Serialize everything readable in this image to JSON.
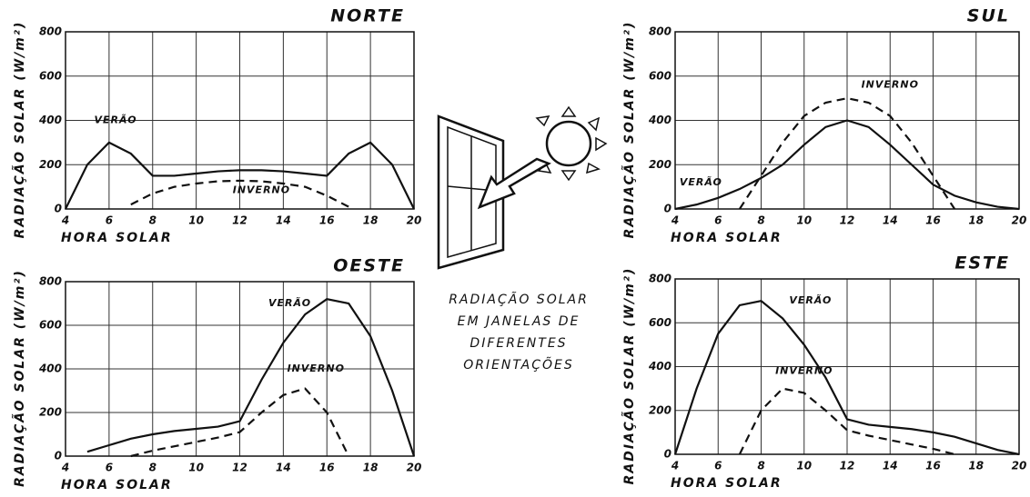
{
  "chart_data": [
    {
      "type": "line",
      "title": "NORTE",
      "xlabel": "HORA SOLAR",
      "ylabel": "RADIAÇÃO SOLAR (W/m²)",
      "x": [
        4,
        5,
        6,
        7,
        8,
        9,
        10,
        11,
        12,
        13,
        14,
        15,
        16,
        17,
        18,
        19,
        20
      ],
      "series": [
        {
          "name": "VERÃO",
          "color": "#111",
          "style": "solid",
          "values": [
            0,
            200,
            300,
            250,
            150,
            150,
            160,
            170,
            175,
            175,
            170,
            160,
            150,
            250,
            300,
            200,
            0
          ]
        },
        {
          "name": "INVERNO",
          "color": "#111",
          "style": "dashed",
          "values": [
            null,
            null,
            null,
            20,
            70,
            100,
            115,
            125,
            128,
            125,
            115,
            100,
            60,
            10,
            null,
            null,
            null
          ]
        }
      ],
      "xlim": [
        4,
        20
      ],
      "xticks": [
        4,
        6,
        8,
        10,
        12,
        14,
        16,
        18,
        20
      ],
      "ylim": [
        0,
        800
      ],
      "yticks": [
        0,
        200,
        400,
        600,
        800
      ],
      "grid": true
    },
    {
      "type": "line",
      "title": "SUL",
      "xlabel": "HORA SOLAR",
      "ylabel": "RADIAÇÃO SOLAR (W/m²)",
      "x": [
        4,
        5,
        6,
        7,
        8,
        9,
        10,
        11,
        12,
        13,
        14,
        15,
        16,
        17,
        18,
        19,
        20
      ],
      "series": [
        {
          "name": "VERÃO",
          "color": "#111",
          "style": "solid",
          "values": [
            0,
            20,
            50,
            90,
            140,
            200,
            290,
            370,
            400,
            370,
            290,
            200,
            110,
            60,
            30,
            10,
            0
          ]
        },
        {
          "name": "INVERNO",
          "color": "#111",
          "style": "dashed",
          "values": [
            null,
            null,
            null,
            0,
            150,
            300,
            420,
            480,
            500,
            480,
            420,
            300,
            150,
            0,
            null,
            null,
            null
          ]
        }
      ],
      "xlim": [
        4,
        20
      ],
      "xticks": [
        4,
        6,
        8,
        10,
        12,
        14,
        16,
        18,
        20
      ],
      "ylim": [
        0,
        800
      ],
      "yticks": [
        0,
        200,
        400,
        600,
        800
      ],
      "grid": true
    },
    {
      "type": "line",
      "title": "OESTE",
      "xlabel": "HORA SOLAR",
      "ylabel": "RADIAÇÃO SOLAR (W/m²)",
      "x": [
        4,
        5,
        6,
        7,
        8,
        9,
        10,
        11,
        12,
        13,
        14,
        15,
        16,
        17,
        18,
        19,
        20
      ],
      "series": [
        {
          "name": "VERÃO",
          "color": "#111",
          "style": "solid",
          "values": [
            null,
            20,
            50,
            80,
            100,
            115,
            125,
            135,
            160,
            350,
            520,
            650,
            720,
            700,
            550,
            300,
            0
          ]
        },
        {
          "name": "INVERNO",
          "color": "#111",
          "style": "dashed",
          "values": [
            null,
            null,
            null,
            0,
            25,
            45,
            65,
            85,
            110,
            200,
            280,
            310,
            200,
            0,
            null,
            null,
            null
          ]
        }
      ],
      "xlim": [
        4,
        20
      ],
      "xticks": [
        4,
        6,
        8,
        10,
        12,
        14,
        16,
        18,
        20
      ],
      "ylim": [
        0,
        800
      ],
      "yticks": [
        0,
        200,
        400,
        600,
        800
      ],
      "grid": true
    },
    {
      "type": "line",
      "title": "ESTE",
      "xlabel": "HORA SOLAR",
      "ylabel": "RADIAÇÃO SOLAR (W/m²)",
      "x": [
        4,
        5,
        6,
        7,
        8,
        9,
        10,
        11,
        12,
        13,
        14,
        15,
        16,
        17,
        18,
        19,
        20
      ],
      "series": [
        {
          "name": "VERÃO",
          "color": "#111",
          "style": "solid",
          "values": [
            0,
            300,
            550,
            680,
            700,
            620,
            500,
            350,
            160,
            135,
            125,
            115,
            100,
            80,
            50,
            20,
            0
          ]
        },
        {
          "name": "INVERNO",
          "color": "#111",
          "style": "dashed",
          "values": [
            null,
            null,
            null,
            0,
            200,
            300,
            280,
            200,
            110,
            85,
            65,
            45,
            25,
            0,
            null,
            null,
            null
          ]
        }
      ],
      "xlim": [
        4,
        20
      ],
      "xticks": [
        4,
        6,
        8,
        10,
        12,
        14,
        16,
        18,
        20
      ],
      "ylim": [
        0,
        800
      ],
      "yticks": [
        0,
        200,
        400,
        600,
        800
      ],
      "grid": true
    }
  ],
  "caption": [
    "RADIAÇÃO SOLAR",
    "EM JANELAS DE",
    "DIFERENTES",
    "ORIENTAÇÕES"
  ]
}
